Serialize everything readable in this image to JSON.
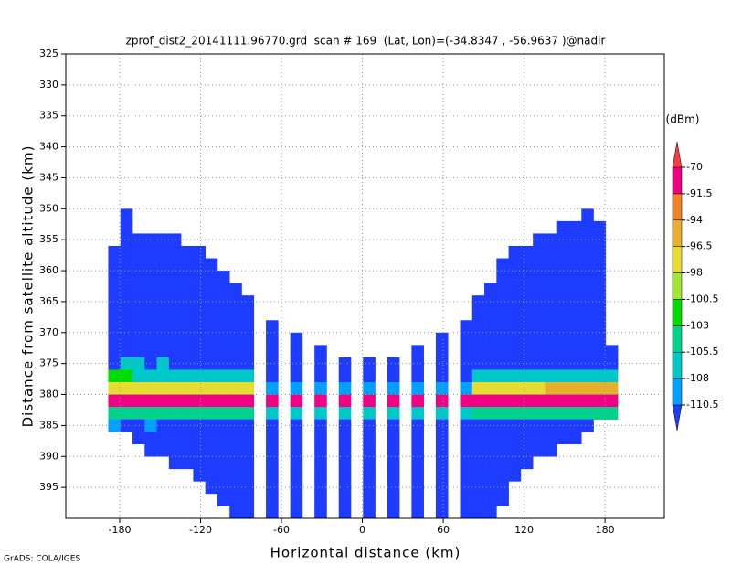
{
  "chart_data": {
    "type": "heatmap",
    "title": "zprof_dist2_20141111.96770.grd  scan # 169  (Lat, Lon)=(-34.8347 , -56.9637 )@nadir",
    "x_label": "Horizontal distance (km)",
    "y_label": "Distance from satellite altitude (km)",
    "footer": "GrADS: COLA/IGES",
    "xlim": [
      -220,
      224
    ],
    "ylim": [
      325,
      400
    ],
    "y_inverted": true,
    "xticks": [
      -180,
      -120,
      -60,
      0,
      60,
      120,
      180
    ],
    "yticks": [
      325,
      330,
      335,
      340,
      345,
      350,
      355,
      360,
      365,
      370,
      375,
      380,
      385,
      390,
      395
    ],
    "grid": true,
    "cell_width": 9,
    "cell_height": 2,
    "x": [
      -184,
      -175,
      -166,
      -157,
      -148,
      -139,
      -130,
      -121,
      -112,
      -103,
      -94,
      -85,
      -76,
      -67,
      -58,
      -49,
      -40,
      -31,
      -22,
      -13,
      -4,
      5,
      14,
      23,
      32,
      41,
      50,
      59,
      68,
      77,
      86,
      95,
      104,
      113,
      122,
      131,
      140,
      149,
      158,
      167,
      176,
      185
    ],
    "y": [
      351,
      353,
      355,
      357,
      359,
      361,
      363,
      365,
      367,
      369,
      371,
      373,
      375,
      377,
      379,
      381,
      383,
      385,
      387,
      389,
      391,
      393,
      395,
      397,
      399
    ],
    "values": [
      [
        null,
        -112,
        null,
        null,
        null,
        null,
        null,
        null,
        null,
        null,
        null,
        null,
        null,
        null,
        null,
        null,
        null,
        null,
        null,
        null,
        null,
        null,
        null,
        null,
        null,
        null,
        null,
        null,
        null,
        null,
        null,
        null,
        null,
        null,
        null,
        null,
        null,
        null,
        null,
        -112,
        null,
        null
      ],
      [
        null,
        -112,
        null,
        null,
        null,
        null,
        null,
        null,
        null,
        null,
        null,
        null,
        null,
        null,
        null,
        null,
        null,
        null,
        null,
        null,
        null,
        null,
        null,
        null,
        null,
        null,
        null,
        null,
        null,
        null,
        null,
        null,
        null,
        null,
        null,
        null,
        null,
        -112,
        -112,
        -112,
        -112,
        null
      ],
      [
        null,
        -112,
        -112,
        -112,
        -112,
        -112,
        null,
        null,
        null,
        null,
        null,
        null,
        null,
        null,
        null,
        null,
        null,
        null,
        null,
        null,
        null,
        null,
        null,
        null,
        null,
        null,
        null,
        null,
        null,
        null,
        null,
        null,
        null,
        null,
        null,
        -112,
        -112,
        -112,
        -112,
        -112,
        -112,
        null
      ],
      [
        -112,
        -112,
        -112,
        -112,
        -112,
        -112,
        -112,
        -112,
        null,
        null,
        null,
        null,
        null,
        null,
        null,
        null,
        null,
        null,
        null,
        null,
        null,
        null,
        null,
        null,
        null,
        null,
        null,
        null,
        null,
        null,
        null,
        null,
        null,
        -112,
        -112,
        -112,
        -112,
        -112,
        -112,
        -112,
        -112,
        null
      ],
      [
        -112,
        -112,
        -112,
        -112,
        -112,
        -112,
        -112,
        -112,
        -112,
        null,
        null,
        null,
        null,
        null,
        null,
        null,
        null,
        null,
        null,
        null,
        null,
        null,
        null,
        null,
        null,
        null,
        null,
        null,
        null,
        null,
        null,
        null,
        -112,
        -112,
        -112,
        -112,
        -112,
        -112,
        -112,
        -112,
        -112,
        null
      ],
      [
        -112,
        -112,
        -112,
        -112,
        -112,
        -112,
        -112,
        -112,
        -112,
        -112,
        null,
        null,
        null,
        null,
        null,
        null,
        null,
        null,
        null,
        null,
        null,
        null,
        null,
        null,
        null,
        null,
        null,
        null,
        null,
        null,
        null,
        null,
        -112,
        -112,
        -112,
        -112,
        -112,
        -112,
        -112,
        -112,
        -112,
        null
      ],
      [
        -112,
        -112,
        -112,
        -112,
        -112,
        -112,
        -112,
        -112,
        -112,
        -112,
        -112,
        null,
        null,
        null,
        null,
        null,
        null,
        null,
        null,
        null,
        null,
        null,
        null,
        null,
        null,
        null,
        null,
        null,
        null,
        null,
        null,
        -112,
        -112,
        -112,
        -112,
        -112,
        -112,
        -112,
        -112,
        -112,
        -112,
        null
      ],
      [
        -112,
        -112,
        -112,
        -112,
        -112,
        -112,
        -112,
        -112,
        -112,
        -112,
        -112,
        -112,
        null,
        null,
        null,
        null,
        null,
        null,
        null,
        null,
        null,
        null,
        null,
        null,
        null,
        null,
        null,
        null,
        null,
        null,
        -112,
        -112,
        -112,
        -112,
        -112,
        -112,
        -112,
        -112,
        -112,
        -112,
        -112,
        null
      ],
      [
        -112,
        -112,
        -112,
        -112,
        -112,
        -112,
        -112,
        -112,
        -112,
        -112,
        -112,
        -112,
        null,
        null,
        null,
        null,
        null,
        null,
        null,
        null,
        null,
        null,
        null,
        null,
        null,
        null,
        null,
        null,
        null,
        null,
        -112,
        -112,
        -112,
        -112,
        -112,
        -112,
        -112,
        -112,
        -112,
        -112,
        -112,
        null
      ],
      [
        -112,
        -112,
        -112,
        -112,
        -112,
        -112,
        -112,
        -112,
        -112,
        -112,
        -112,
        -112,
        null,
        -112,
        null,
        null,
        null,
        null,
        null,
        null,
        null,
        null,
        null,
        null,
        null,
        null,
        null,
        null,
        null,
        -112,
        -112,
        -112,
        -112,
        -112,
        -112,
        -112,
        -112,
        -112,
        -112,
        -112,
        -112,
        null
      ],
      [
        -112,
        -112,
        -112,
        -112,
        -112,
        -112,
        -112,
        -112,
        -112,
        -112,
        -112,
        -112,
        null,
        -112,
        null,
        -112,
        null,
        null,
        null,
        null,
        null,
        null,
        null,
        null,
        null,
        null,
        null,
        -112,
        null,
        -112,
        -112,
        -112,
        -112,
        -112,
        -112,
        -112,
        -112,
        -112,
        -112,
        -112,
        -112,
        null
      ],
      [
        -112,
        -112,
        -112,
        -112,
        -112,
        -112,
        -112,
        -112,
        -112,
        -112,
        -112,
        -112,
        null,
        -112,
        null,
        -112,
        null,
        -112,
        null,
        null,
        null,
        null,
        null,
        null,
        null,
        -112,
        null,
        -112,
        null,
        -112,
        -112,
        -112,
        -112,
        -112,
        -112,
        -112,
        -112,
        -112,
        -112,
        -112,
        -112,
        -112
      ],
      [
        -112,
        -106,
        -106,
        -112,
        -106,
        -112,
        -112,
        -112,
        -112,
        -112,
        -112,
        -112,
        null,
        -112,
        null,
        -112,
        null,
        -112,
        null,
        -112,
        null,
        -112,
        null,
        -112,
        null,
        -112,
        null,
        -112,
        null,
        -112,
        -112,
        -112,
        -112,
        -112,
        -112,
        -112,
        -112,
        -112,
        -112,
        -112,
        -112,
        -112
      ],
      [
        -101,
        -101,
        -106,
        -106,
        -106,
        -106,
        -106,
        -106,
        -106,
        -106,
        -106,
        -106,
        null,
        -112,
        null,
        -112,
        null,
        -112,
        null,
        -112,
        null,
        -112,
        null,
        -112,
        null,
        -112,
        null,
        -112,
        null,
        -112,
        -106,
        -106,
        -106,
        -106,
        -106,
        -106,
        -106,
        -106,
        -106,
        -106,
        -106,
        -106
      ],
      [
        -97,
        -97,
        -97,
        -97,
        -97,
        -97,
        -97,
        -97,
        -97,
        -97,
        -97,
        -97,
        null,
        -109,
        null,
        -109,
        null,
        -109,
        null,
        -109,
        null,
        -109,
        null,
        -109,
        null,
        -109,
        null,
        -109,
        null,
        -109,
        -97,
        -97,
        -97,
        -97,
        -97,
        -97,
        -95,
        -95,
        -95,
        -95,
        -95,
        -95
      ],
      [
        -80,
        -80,
        -80,
        -80,
        -80,
        -80,
        -80,
        -80,
        -80,
        -80,
        -80,
        -80,
        null,
        -85,
        null,
        -85,
        null,
        -85,
        null,
        -85,
        null,
        -85,
        null,
        -85,
        null,
        -85,
        null,
        -85,
        null,
        -85,
        -80,
        -80,
        -80,
        -80,
        -80,
        -80,
        -80,
        -80,
        -80,
        -80,
        -80,
        -80
      ],
      [
        -104,
        -104,
        -104,
        -104,
        -104,
        -104,
        -104,
        -104,
        -104,
        -104,
        -104,
        -104,
        null,
        -107,
        null,
        -107,
        null,
        -107,
        null,
        -107,
        null,
        -107,
        null,
        -107,
        null,
        -107,
        null,
        -107,
        null,
        -107,
        -104,
        -104,
        -104,
        -104,
        -104,
        -104,
        -104,
        -104,
        -104,
        -104,
        -104,
        -104
      ],
      [
        -109,
        -112,
        -112,
        -109,
        -112,
        -112,
        -112,
        -112,
        -112,
        -112,
        -112,
        -112,
        null,
        -112,
        null,
        -112,
        null,
        -112,
        null,
        -112,
        null,
        -112,
        null,
        -112,
        null,
        -112,
        null,
        -112,
        null,
        -112,
        -112,
        -112,
        -112,
        -112,
        -112,
        -112,
        -112,
        -112,
        -112,
        -112,
        null,
        null
      ],
      [
        null,
        null,
        -112,
        -112,
        -112,
        -112,
        -112,
        -112,
        -112,
        -112,
        -112,
        -112,
        null,
        -112,
        null,
        -112,
        null,
        -112,
        null,
        -112,
        null,
        -112,
        null,
        -112,
        null,
        -112,
        null,
        -112,
        null,
        -112,
        -112,
        -112,
        -112,
        -112,
        -112,
        -112,
        -112,
        -112,
        -112,
        null,
        null,
        null
      ],
      [
        null,
        null,
        null,
        -112,
        -112,
        -112,
        -112,
        -112,
        -112,
        -112,
        -112,
        -112,
        null,
        -112,
        null,
        -112,
        null,
        -112,
        null,
        -112,
        null,
        -112,
        null,
        -112,
        null,
        -112,
        null,
        -112,
        null,
        -112,
        -112,
        -112,
        -112,
        -112,
        -112,
        -112,
        -112,
        null,
        null,
        null,
        null,
        null
      ],
      [
        null,
        null,
        null,
        null,
        null,
        -112,
        -112,
        -112,
        -112,
        -112,
        -112,
        -112,
        null,
        -112,
        null,
        -112,
        null,
        -112,
        null,
        -112,
        null,
        -112,
        null,
        -112,
        null,
        -112,
        null,
        -112,
        null,
        -112,
        -112,
        -112,
        -112,
        -112,
        -112,
        null,
        null,
        null,
        null,
        null,
        null,
        null
      ],
      [
        null,
        null,
        null,
        null,
        null,
        null,
        null,
        -112,
        -112,
        -112,
        -112,
        -112,
        null,
        -112,
        null,
        -112,
        null,
        -112,
        null,
        -112,
        null,
        -112,
        null,
        -112,
        null,
        -112,
        null,
        -112,
        null,
        -112,
        -112,
        -112,
        -112,
        -112,
        null,
        null,
        null,
        null,
        null,
        null,
        null,
        null
      ],
      [
        null,
        null,
        null,
        null,
        null,
        null,
        null,
        null,
        -112,
        -112,
        -112,
        -112,
        null,
        -112,
        null,
        -112,
        null,
        -112,
        null,
        -112,
        null,
        -112,
        null,
        -112,
        null,
        -112,
        null,
        -112,
        null,
        -112,
        -112,
        -112,
        -112,
        null,
        null,
        null,
        null,
        null,
        null,
        null,
        null,
        null
      ],
      [
        null,
        null,
        null,
        null,
        null,
        null,
        null,
        null,
        null,
        -112,
        -112,
        -112,
        null,
        -112,
        null,
        -112,
        null,
        -112,
        null,
        -112,
        null,
        -112,
        null,
        -112,
        null,
        -112,
        null,
        -112,
        null,
        -112,
        -112,
        -112,
        -112,
        null,
        null,
        null,
        null,
        null,
        null,
        null,
        null,
        null
      ],
      [
        null,
        null,
        null,
        null,
        null,
        null,
        null,
        null,
        null,
        null,
        -112,
        -112,
        null,
        -112,
        null,
        -112,
        null,
        -112,
        null,
        -112,
        null,
        -112,
        null,
        -112,
        null,
        -112,
        null,
        -112,
        null,
        -112,
        -112,
        -112,
        null,
        null,
        null,
        null,
        null,
        null,
        null,
        null,
        null,
        null
      ]
    ],
    "colorbar": {
      "unit": "(dBm)",
      "levels": [
        -110.5,
        -108,
        -105.5,
        -103,
        -100.5,
        -98,
        -96.5,
        -94,
        -91.5,
        -70
      ],
      "colors": [
        "#1e3cff",
        "#00a0ff",
        "#00c8c8",
        "#00d28c",
        "#00dc00",
        "#a0e632",
        "#e6dc32",
        "#e6af2d",
        "#f08228",
        "#f00082",
        "#fa3c3c"
      ]
    }
  }
}
